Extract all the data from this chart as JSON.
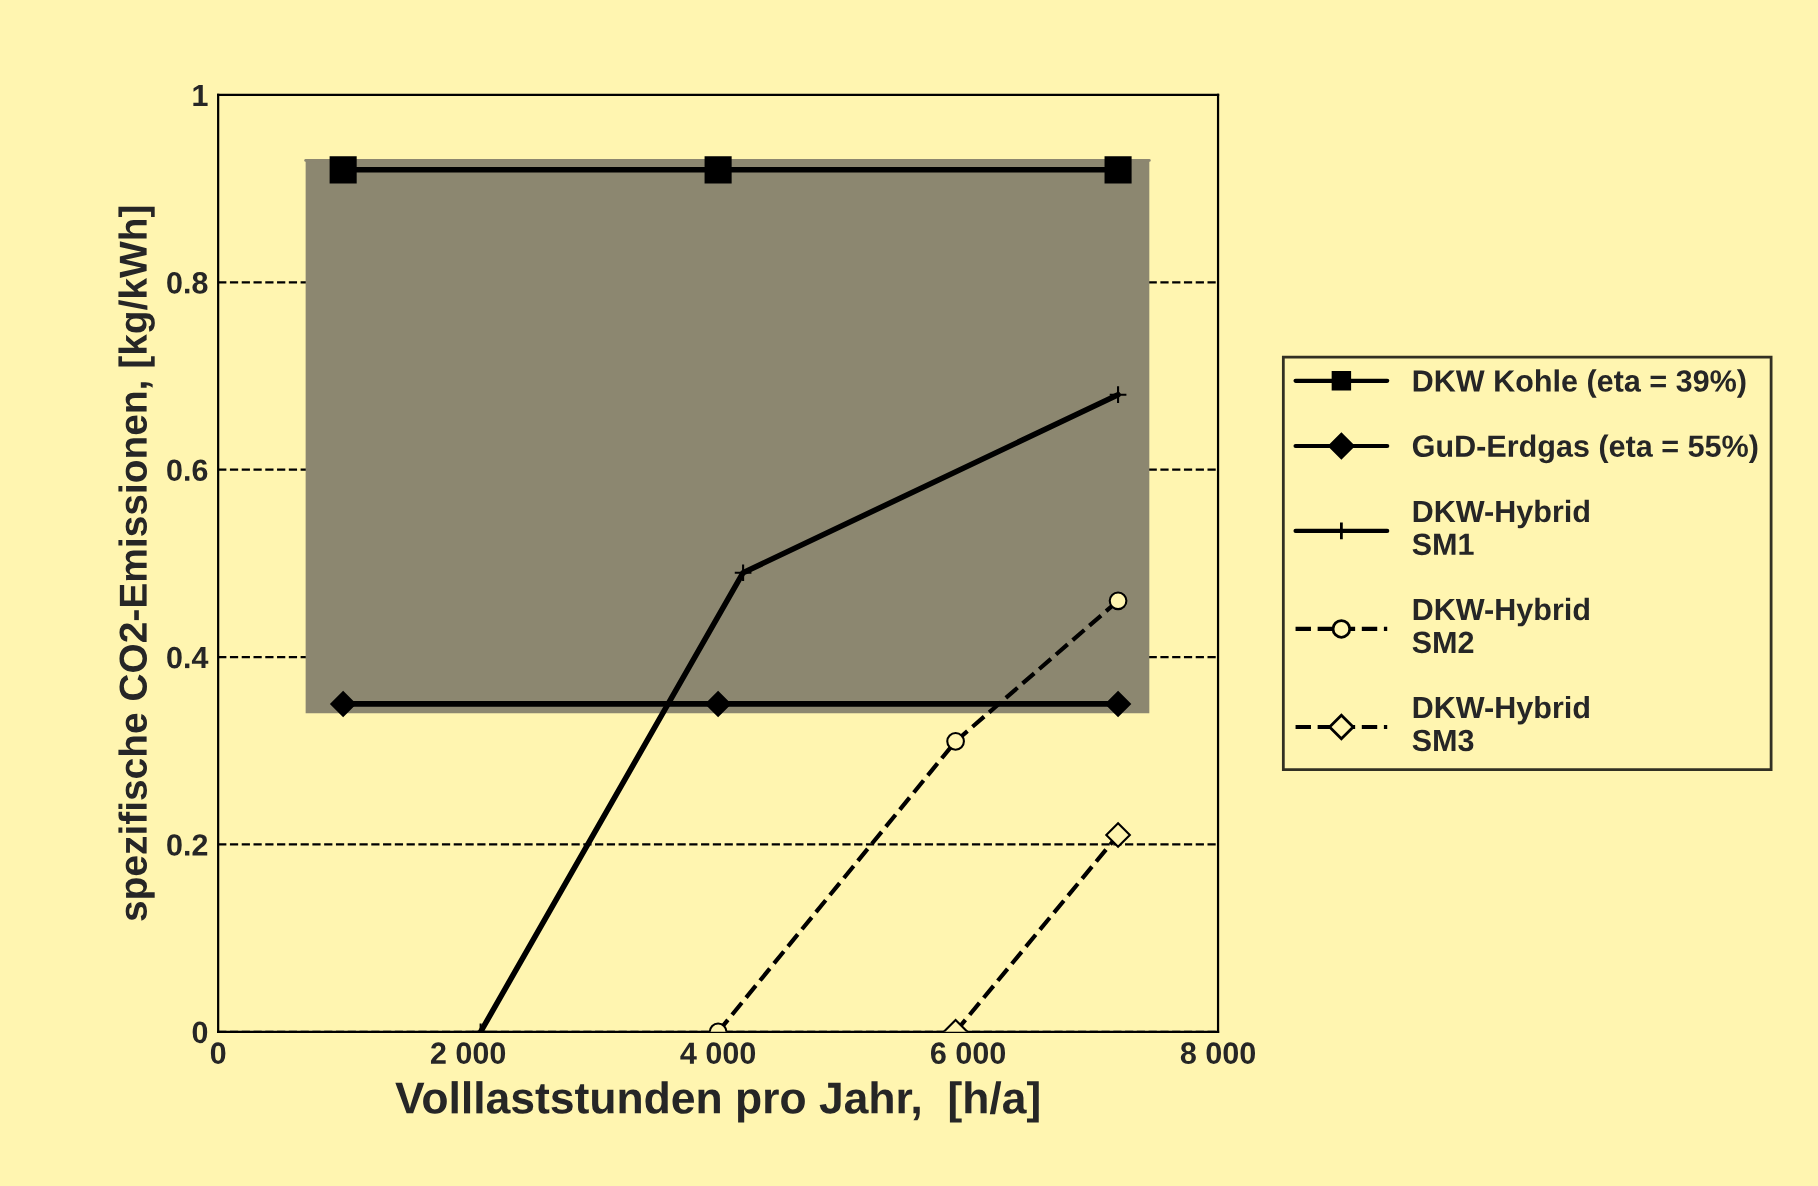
{
  "chart_data": {
    "type": "line",
    "xlabel": "Volllaststunden pro Jahr,  [h/a]",
    "ylabel": "spezifische CO2-Emissionen, [kg/kWh]",
    "xlim": [
      0,
      8000
    ],
    "xticks": [
      {
        "value": 0,
        "label": "0"
      },
      {
        "value": 2000,
        "label": "2 000"
      },
      {
        "value": 4000,
        "label": "4 000"
      },
      {
        "value": 6000,
        "label": "6 000"
      },
      {
        "value": 8000,
        "label": "8 000"
      }
    ],
    "ylim": [
      0,
      1
    ],
    "yticks": [
      0,
      0.2,
      0.4,
      0.6,
      0.8,
      1
    ],
    "grid": "y",
    "legend": "right",
    "series": [
      {
        "color": "#8c8770",
        "x": [
          700,
          7450
        ],
        "lower": [
          0.34,
          0.34
        ],
        "upper": [
          0.93,
          0.93
        ],
        "values": [
          0.93,
          0.93
        ]
      },
      {
        "name": "DKW Kohle (eta = 39%)",
        "color": "#000000",
        "x": [
          1000,
          4000,
          7200
        ],
        "values": [
          0.92,
          0.92,
          0.92
        ],
        "marker": "square",
        "line_style": "solid"
      },
      {
        "name": "GuD-Erdgas (eta = 55%)",
        "color": "#000000",
        "x": [
          1000,
          4000,
          7200
        ],
        "values": [
          0.35,
          0.35,
          0.35
        ],
        "marker": "diamond",
        "line_style": "solid"
      },
      {
        "name": "DKW-Hybrid\nSM1",
        "color": "#000000",
        "x": [
          2100,
          4200,
          7200
        ],
        "values": [
          0,
          0.49,
          0.68
        ],
        "marker": "cross",
        "line_style": "solid"
      },
      {
        "name": "DKW-Hybrid\nSM2",
        "color": "#000000",
        "x": [
          4000,
          5900,
          7200
        ],
        "values": [
          0,
          0.31,
          0.46
        ],
        "marker": "circle",
        "line_style": "dashed"
      },
      {
        "name": "DKW-Hybrid\nSM3",
        "color": "#000000",
        "x": [
          5900,
          7200
        ],
        "values": [
          0,
          0.21
        ],
        "marker": "diamond",
        "line_style": "dashed"
      }
    ]
  }
}
